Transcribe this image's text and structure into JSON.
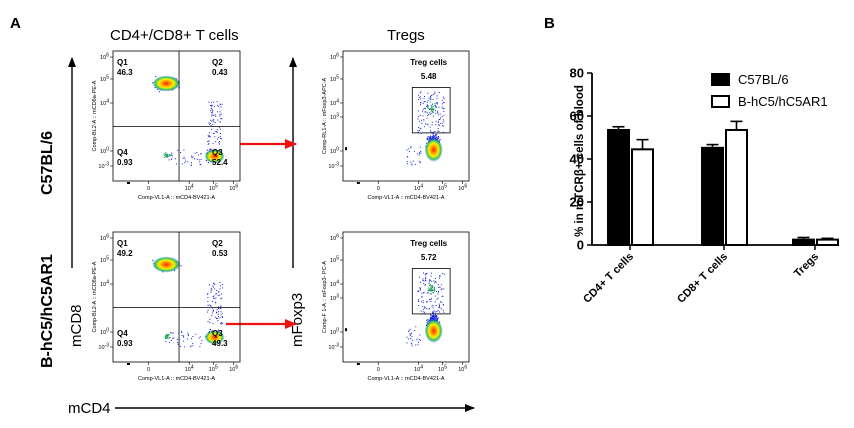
{
  "panel_a": {
    "letter": "A",
    "col1_title": "CD4+/CD8+ T cells",
    "col2_title": "Tregs",
    "row1_label": "C57BL/6",
    "row2_label": "B-hC5/hC5AR1",
    "x_axis_label": "mCD4",
    "y_axis_label_1": "mCD8",
    "y_axis_label_2": "mFoxp3",
    "plots": [
      {
        "id": "row1-col1",
        "xlabel": "Comp-VL1-A :: mCD4-BV421-A",
        "ylabel": "Comp-BL2-A :: mCD8a-PE-A",
        "quadrants": [
          {
            "name": "Q1",
            "value": "46.3"
          },
          {
            "name": "Q2",
            "value": "0.43"
          },
          {
            "name": "Q3",
            "value": "52.4"
          },
          {
            "name": "Q4",
            "value": "0.93"
          }
        ]
      },
      {
        "id": "row2-col1",
        "xlabel": "Comp-VL1-A :: mCD4-BV421-A",
        "ylabel": "Comp-BL2-A :: mCD8a-PE-A",
        "quadrants": [
          {
            "name": "Q1",
            "value": "49.2"
          },
          {
            "name": "Q2",
            "value": "0.53"
          },
          {
            "name": "Q3",
            "value": "49.3"
          },
          {
            "name": "Q4",
            "value": "0.93"
          }
        ]
      },
      {
        "id": "row1-col2",
        "xlabel": "Comp-VL1-A :: mCD4-BV421-A",
        "ylabel": "Comp-RL1-A :: mFoxp3-APC-A",
        "gate_name": "Treg cells",
        "gate_value": "5.48"
      },
      {
        "id": "row2-col2",
        "xlabel": "Comp-VL1-A :: mCD4-BV421-A",
        "ylabel": "Comp-F 1-A :: mFoxp3- PC-A",
        "gate_name": "Treg cells",
        "gate_value": "5.72"
      }
    ],
    "colors": {
      "arrow": "#ee1111",
      "density_high": "#ff3300",
      "density_mid": "#ffee00",
      "density_low": "#22cc44",
      "scatter": "#1a24d8"
    }
  },
  "chart_data": {
    "type": "bar",
    "panel_letter": "B",
    "ylabel": "% in mTCRβ+ cells of blood",
    "ylim": [
      0,
      80
    ],
    "yticks": [
      "0",
      "20",
      "40",
      "60",
      "80"
    ],
    "categories": [
      "CD4+ T cells",
      "CD8+ T cells",
      "Tregs"
    ],
    "series": [
      {
        "name": "C57BL/6",
        "values": [
          53.5,
          45.2,
          2.5
        ],
        "errors": [
          1.5,
          1.5,
          1.0
        ],
        "fill": "#000000"
      },
      {
        "name": "B-hC5/hC5AR1",
        "values": [
          44.5,
          53.5,
          2.5
        ],
        "errors": [
          4.5,
          4.0,
          0.6
        ],
        "fill": "#ffffff"
      }
    ],
    "legend_position": "top-right"
  }
}
